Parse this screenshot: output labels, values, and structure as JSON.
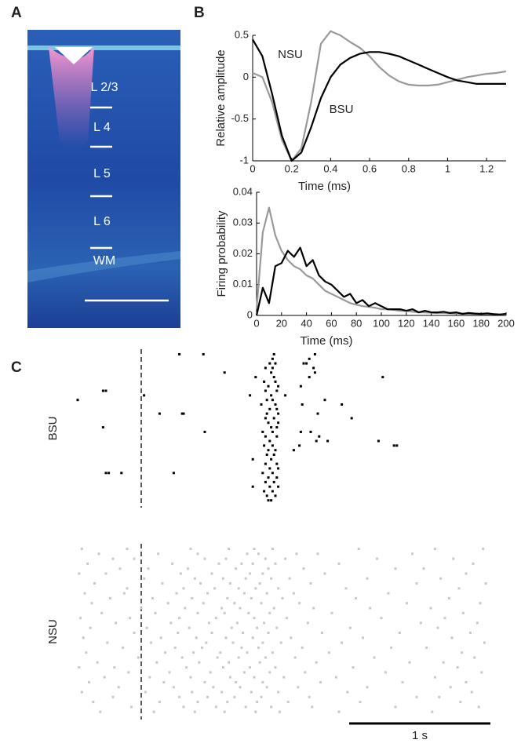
{
  "panel_labels": [
    "A",
    "B",
    "C"
  ],
  "image": {
    "layer_labels": [
      "L 2/3",
      "L 4",
      "L 5",
      "L 6",
      "WM"
    ]
  },
  "chart_data": [
    {
      "type": "line",
      "xlabel": "Time (ms)",
      "ylabel": "Relative amplitude",
      "x": [
        0,
        0.05,
        0.1,
        0.15,
        0.2,
        0.25,
        0.3,
        0.35,
        0.4,
        0.45,
        0.5,
        0.55,
        0.6,
        0.65,
        0.7,
        0.75,
        0.8,
        0.85,
        0.9,
        0.95,
        1.0,
        1.05,
        1.1,
        1.15,
        1.2,
        1.25,
        1.3
      ],
      "series": [
        {
          "name": "NSU",
          "color": "#999999",
          "values": [
            0.05,
            0.0,
            -0.3,
            -0.75,
            -1.0,
            -0.85,
            -0.3,
            0.4,
            0.55,
            0.5,
            0.42,
            0.35,
            0.25,
            0.12,
            0.02,
            -0.05,
            -0.09,
            -0.1,
            -0.1,
            -0.09,
            -0.06,
            -0.03,
            0.0,
            0.02,
            0.04,
            0.05,
            0.07
          ]
        },
        {
          "name": "BSU",
          "color": "#000000",
          "values": [
            0.45,
            0.25,
            -0.2,
            -0.7,
            -1.0,
            -0.9,
            -0.6,
            -0.25,
            0.0,
            0.15,
            0.23,
            0.28,
            0.3,
            0.3,
            0.28,
            0.25,
            0.2,
            0.15,
            0.1,
            0.05,
            0.0,
            -0.04,
            -0.06,
            -0.08,
            -0.08,
            -0.08,
            -0.08
          ]
        }
      ],
      "xlim": [
        0,
        1.3
      ],
      "ylim": [
        -1,
        0.5
      ],
      "xticks": [
        0,
        0.2,
        0.4,
        0.6,
        0.8,
        1,
        1.2
      ],
      "yticks": [
        -1,
        -0.5,
        0,
        0.5
      ]
    },
    {
      "type": "line",
      "xlabel": "Time (ms)",
      "ylabel": "Firing probability",
      "x": [
        0,
        5,
        10,
        15,
        20,
        25,
        30,
        35,
        40,
        45,
        50,
        55,
        60,
        65,
        70,
        75,
        80,
        85,
        90,
        95,
        100,
        105,
        110,
        115,
        120,
        125,
        130,
        135,
        140,
        145,
        150,
        155,
        160,
        165,
        170,
        175,
        180,
        185,
        190,
        195,
        200
      ],
      "series": [
        {
          "color": "#999999",
          "values": [
            0.002,
            0.027,
            0.035,
            0.026,
            0.021,
            0.018,
            0.016,
            0.015,
            0.013,
            0.012,
            0.01,
            0.008,
            0.007,
            0.006,
            0.005,
            0.004,
            0.0035,
            0.003,
            0.0028,
            0.0025,
            0.002,
            0.002,
            0.0018,
            0.0015,
            0.0015,
            0.0012,
            0.001,
            0.001,
            0.0009,
            0.0008,
            0.0008,
            0.0007,
            0.0006,
            0.0006,
            0.0005,
            0.0005,
            0.0004,
            0.0004,
            0.0004,
            0.0003,
            0.0003
          ]
        },
        {
          "color": "#000000",
          "values": [
            0,
            0.009,
            0.004,
            0.016,
            0.017,
            0.021,
            0.019,
            0.022,
            0.016,
            0.018,
            0.013,
            0.011,
            0.01,
            0.008,
            0.006,
            0.007,
            0.004,
            0.005,
            0.003,
            0.004,
            0.003,
            0.002,
            0.002,
            0.002,
            0.0015,
            0.002,
            0.001,
            0.0015,
            0.001,
            0.001,
            0.0012,
            0.0008,
            0.001,
            0.0005,
            0.0008,
            0.0006,
            0.0005,
            0.0007,
            0.0004,
            0.0003,
            0.0005
          ]
        }
      ],
      "xlim": [
        0,
        200
      ],
      "ylim": [
        0,
        0.04
      ],
      "xticks": [
        0,
        20,
        40,
        60,
        80,
        100,
        120,
        140,
        160,
        180,
        200
      ],
      "yticks": [
        0,
        0.01,
        0.02,
        0.03,
        0.04
      ]
    },
    {
      "type": "raster",
      "label": "BSU",
      "color": "#000000",
      "xlim": [
        -0.5,
        2.5
      ],
      "stimulus": 0,
      "trials": [
        [
          0.27,
          0.44,
          0.94,
          1.23
        ],
        [
          0.93,
          1.19
        ],
        [
          0.91,
          0.95,
          1.15,
          1.17
        ],
        [
          0.88,
          0.93,
          1.22
        ],
        [
          0.59,
          0.92,
          1.23
        ],
        [
          0.81,
          0.94,
          1.19,
          1.71
        ],
        [
          0.87,
          0.95
        ],
        [
          0.9,
          0.97,
          1.13
        ],
        [
          -0.27,
          -0.25,
          0.88,
          0.96
        ],
        [
          0.02,
          0.77,
          0.92,
          1.02
        ],
        [
          -0.45,
          0.89,
          0.93,
          1.3
        ],
        [
          0.85,
          0.95,
          1.14,
          1.42
        ],
        [
          0.91,
          0.96
        ],
        [
          0.13,
          0.29,
          0.3,
          0.89,
          0.97,
          1.25
        ],
        [
          0.88,
          0.94,
          1.49
        ],
        [
          0.9,
          0.97
        ],
        [
          -0.27,
          0.92,
          0.96
        ],
        [
          0.45,
          0.86,
          0.93,
          1.13,
          1.2
        ],
        [
          0.88,
          0.96,
          1.26
        ],
        [
          0.91,
          1.24,
          1.32,
          1.68
        ],
        [
          0.87,
          0.93,
          1.12,
          1.79,
          1.81
        ],
        [
          0.9,
          0.95,
          1.08
        ],
        [
          0.89,
          0.94
        ],
        [
          0.79,
          0.92
        ],
        [
          0.88,
          0.96
        ],
        [
          0.91,
          0.97
        ],
        [
          -0.25,
          -0.23,
          -0.14,
          0.23,
          0.86,
          0.93
        ],
        [
          0.9,
          0.96
        ],
        [
          0.88,
          0.94
        ],
        [
          0.79,
          0.91,
          0.97
        ],
        [
          0.87,
          0.93
        ],
        [
          0.89,
          0.95
        ],
        [
          0.9,
          0.92
        ]
      ]
    },
    {
      "type": "raster",
      "label": "NSU",
      "color": "#c8c8c8",
      "xlim": [
        -0.5,
        2.5
      ],
      "stimulus": 0,
      "scalebar": {
        "value": 1,
        "label": "1 s"
      },
      "trials": [
        [
          -0.42,
          -0.1,
          0.35,
          0.62,
          0.8,
          0.93,
          1.54,
          2.08,
          2.42
        ],
        [
          -0.3,
          0.12,
          0.4,
          0.75,
          0.83,
          1.1,
          1.25,
          1.92
        ],
        [
          -0.2,
          -0.05,
          0.45,
          0.6,
          0.88,
          1.02,
          1.67,
          2.21
        ],
        [
          -0.38,
          0.22,
          0.55,
          0.71,
          0.79,
          0.95,
          1.4,
          2.35
        ],
        [
          -0.15,
          0.05,
          0.33,
          0.67,
          0.9,
          1.15,
          1.8,
          2.0
        ],
        [
          -0.44,
          -0.25,
          0.28,
          0.5,
          0.77,
          0.86,
          1.3,
          2.3
        ],
        [
          0.02,
          0.38,
          0.58,
          0.74,
          0.92,
          1.05,
          1.6,
          2.12
        ],
        [
          -0.33,
          0.15,
          0.42,
          0.63,
          0.84,
          1.2,
          1.95,
          2.44
        ],
        [
          -0.1,
          0.3,
          0.52,
          0.69,
          0.81,
          0.97,
          1.45,
          2.25
        ],
        [
          -0.4,
          -0.12,
          0.25,
          0.47,
          0.73,
          0.89,
          1.08,
          1.75
        ],
        [
          -0.22,
          0.08,
          0.36,
          0.61,
          0.78,
          1.0,
          1.52,
          2.18
        ],
        [
          -0.35,
          0.19,
          0.44,
          0.66,
          0.85,
          1.12,
          1.88,
          2.4
        ],
        [
          0.0,
          0.31,
          0.57,
          0.7,
          0.94,
          1.22,
          1.62,
          2.05
        ],
        [
          -0.28,
          0.1,
          0.4,
          0.59,
          0.76,
          0.91,
          1.35,
          2.28
        ],
        [
          -0.43,
          -0.08,
          0.27,
          0.53,
          0.8,
          1.03,
          1.7,
          2.15
        ],
        [
          -0.18,
          0.21,
          0.48,
          0.68,
          0.87,
          1.18,
          1.98,
          2.38
        ],
        [
          -0.36,
          0.04,
          0.34,
          0.64,
          0.82,
          0.96,
          1.48,
          2.1
        ],
        [
          -0.05,
          0.26,
          0.5,
          0.72,
          0.9,
          1.28,
          1.83,
          2.33
        ],
        [
          -0.41,
          0.14,
          0.39,
          0.6,
          0.79,
          1.06,
          1.57,
          2.2
        ],
        [
          -0.24,
          0.07,
          0.46,
          0.65,
          0.86,
          0.99,
          1.42,
          2.43
        ],
        [
          -0.13,
          0.24,
          0.43,
          0.71,
          0.83,
          1.14,
          1.77,
          2.02
        ],
        [
          -0.39,
          0.17,
          0.37,
          0.56,
          0.75,
          0.93,
          1.33,
          2.27
        ],
        [
          -0.02,
          0.29,
          0.54,
          0.69,
          0.88,
          1.09,
          1.65,
          2.36
        ],
        [
          -0.31,
          0.11,
          0.41,
          0.62,
          0.84,
          1.24,
          1.9,
          2.14
        ],
        [
          -0.44,
          -0.19,
          0.32,
          0.58,
          0.77,
          0.95,
          1.5,
          2.24
        ],
        [
          -0.09,
          0.2,
          0.49,
          0.73,
          0.91,
          1.16,
          1.73,
          2.41
        ],
        [
          -0.26,
          0.06,
          0.35,
          0.63,
          0.8,
          1.01,
          1.38,
          2.08
        ],
        [
          -0.37,
          0.16,
          0.45,
          0.67,
          0.86,
          1.27,
          1.85,
          2.3
        ],
        [
          -0.16,
          0.23,
          0.51,
          0.7,
          0.89,
          1.11,
          1.6,
          2.19
        ],
        [
          -0.42,
          0.03,
          0.36,
          0.57,
          0.78,
          0.97,
          1.46,
          2.34
        ],
        [
          -0.2,
          0.27,
          0.47,
          0.66,
          0.85,
          1.19,
          1.95,
          2.11
        ],
        [
          -0.34,
          0.13,
          0.4,
          0.61,
          0.82,
          1.04,
          1.55,
          2.26
        ],
        [
          -0.07,
          0.3,
          0.53,
          0.74,
          0.92,
          1.21,
          1.8,
          2.39
        ],
        [
          -0.29,
          0.09,
          0.38,
          0.59,
          0.81,
          0.98,
          1.4,
          2.06
        ]
      ]
    }
  ]
}
